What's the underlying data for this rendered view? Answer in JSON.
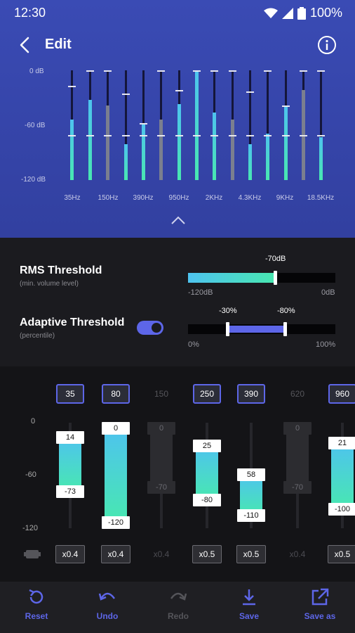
{
  "status_bar": {
    "time": "12:30",
    "battery": "100%"
  },
  "app_bar": {
    "title": "Edit"
  },
  "eq_overview": {
    "y_labels": [
      "0 dB",
      "-60 dB",
      "-120 dB"
    ],
    "freq_labels": [
      "35Hz",
      "150Hz",
      "390Hz",
      "950Hz",
      "2KHz",
      "4.3KHz",
      "9KHz",
      "18.5KHz"
    ]
  },
  "rms": {
    "title": "RMS Threshold",
    "subtitle": "(min. volume level)",
    "value_label": "-70dB",
    "min_label": "-120dB",
    "max_label": "0dB"
  },
  "adaptive": {
    "title": "Adaptive Threshold",
    "subtitle": "(percentile)",
    "low_label": "-30%",
    "high_label": "-80%",
    "min_label": "0%",
    "max_label": "100%",
    "enabled": true
  },
  "band_axis": {
    "labels": [
      "0",
      "-60",
      "-120"
    ]
  },
  "bands": [
    {
      "freq": "35",
      "top": "14",
      "bottom": "-73",
      "gain": "x0.4",
      "on": true
    },
    {
      "freq": "80",
      "top": "0",
      "bottom": "-120",
      "gain": "x0.4",
      "on": true
    },
    {
      "freq": "150",
      "top": "0",
      "bottom": "-70",
      "gain": "x0.4",
      "on": false
    },
    {
      "freq": "250",
      "top": "25",
      "bottom": "-80",
      "gain": "x0.5",
      "on": true
    },
    {
      "freq": "390",
      "top": "58",
      "bottom": "-110",
      "gain": "x0.5",
      "on": true
    },
    {
      "freq": "620",
      "top": "0",
      "bottom": "-70",
      "gain": "x0.4",
      "on": false
    },
    {
      "freq": "960",
      "top": "21",
      "bottom": "-100",
      "gain": "x0.5",
      "on": true
    }
  ],
  "bottom_nav": {
    "reset": "Reset",
    "undo": "Undo",
    "redo": "Redo",
    "save": "Save",
    "save_as": "Save as"
  },
  "colors": {
    "accent": "#5d66e8",
    "gradient_start": "#4ec3ef",
    "gradient_end": "#48e8b0",
    "header_bg": "#3a4bb4"
  }
}
